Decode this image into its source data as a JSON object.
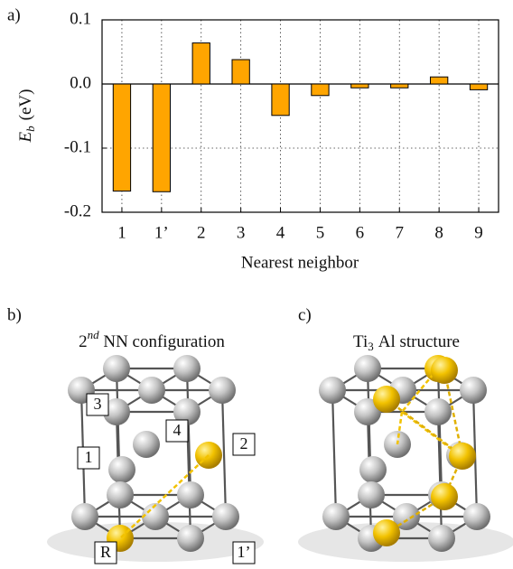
{
  "chart_data": {
    "type": "bar",
    "panel_label": "a)",
    "ylabel": {
      "symbol": "E",
      "subscript": "b",
      "unit": "(eV)"
    },
    "xlabel": "Nearest neighbor",
    "categories": [
      "1",
      "1’",
      "2",
      "3",
      "4",
      "5",
      "6",
      "7",
      "8",
      "9"
    ],
    "values": [
      -0.167,
      -0.168,
      0.064,
      0.038,
      -0.049,
      -0.018,
      -0.006,
      -0.006,
      0.011,
      -0.009
    ],
    "color": "#ffa500",
    "ylim": [
      -0.2,
      0.1
    ],
    "yticks": [
      0.1,
      {
        "value": 0,
        "label": "0.0"
      },
      -0.1,
      -0.2
    ],
    "grid": true
  },
  "panel_b": {
    "label": "b)",
    "title": {
      "base": "2",
      "sup": "nd",
      "rest": " NN configuration"
    },
    "sites": [
      "3",
      "4",
      "1",
      "2",
      "R",
      "1’"
    ]
  },
  "panel_c": {
    "label": "c)",
    "title": {
      "element1": "Ti",
      "sub": "3",
      "rest": "Al structure"
    }
  }
}
